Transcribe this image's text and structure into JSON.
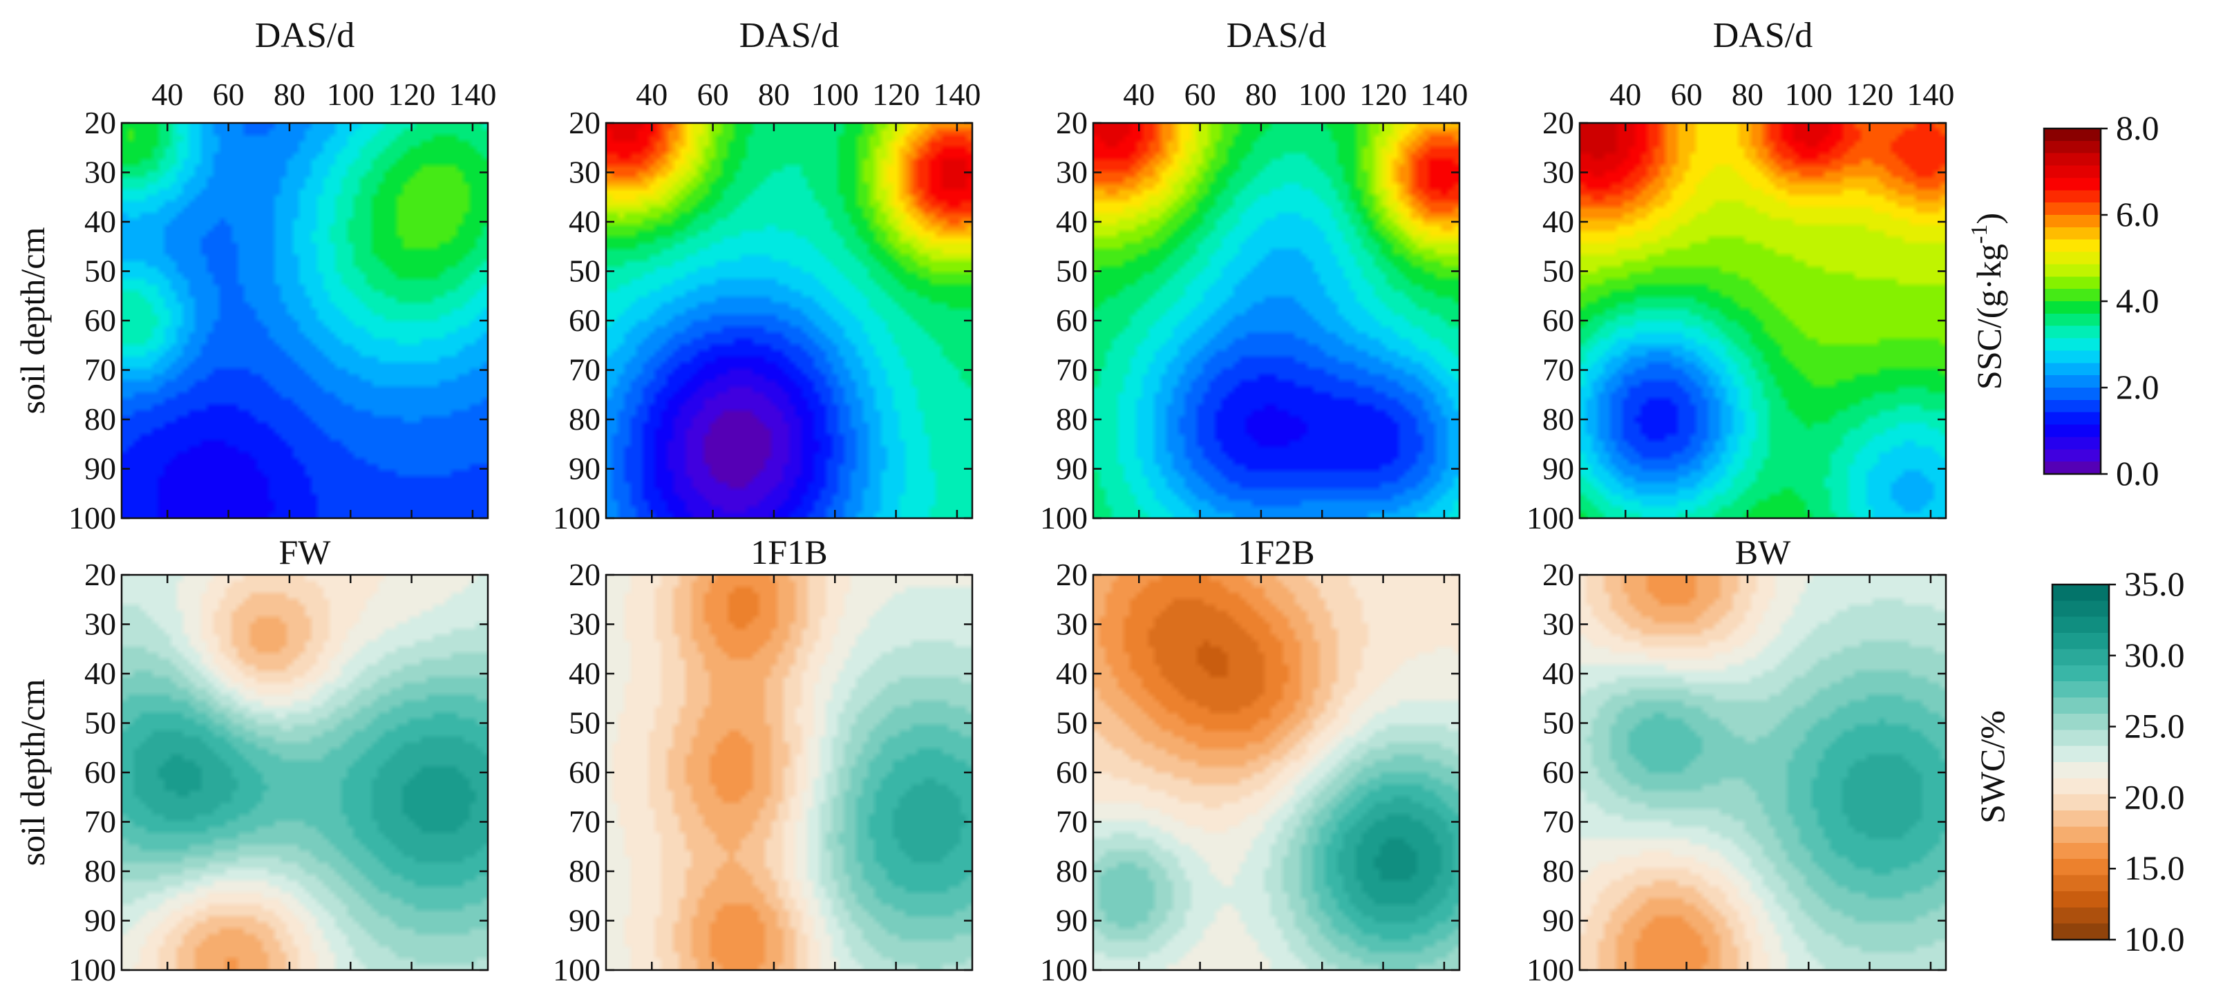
{
  "chart_data": {
    "type": "heatmap",
    "x_axis": {
      "label": "DAS/d",
      "ticks": [
        40,
        60,
        80,
        100,
        120,
        140
      ],
      "range": [
        25,
        145
      ]
    },
    "y_axis": {
      "label": "soil depth/cm",
      "ticks": [
        20,
        30,
        40,
        50,
        60,
        70,
        80,
        90,
        100
      ],
      "range": [
        20,
        100
      ]
    },
    "treatments": [
      "FW",
      "1F1B",
      "1F2B",
      "BW"
    ],
    "ssc": {
      "colorbar_label": "SSC/(g·kg",
      "colorbar_exponent": "-1",
      "colorbar_close": ")",
      "colorbar_ticks": [
        "8.0",
        "6.0",
        "4.0",
        "2.0",
        "0.0"
      ],
      "range": [
        0,
        8
      ],
      "panels": [
        {
          "treatment": "FW",
          "base": 1.6,
          "anchors": [
            {
              "das": 27,
              "depth": 22,
              "value": 4.0,
              "spread": 0.14
            },
            {
              "das": 27,
              "depth": 60,
              "value": 3.4,
              "spread": 0.12
            },
            {
              "das": 118,
              "depth": 45,
              "value": 3.5,
              "spread": 0.25
            },
            {
              "das": 55,
              "depth": 97,
              "value": 0.9,
              "spread": 0.18
            },
            {
              "das": 140,
              "depth": 25,
              "value": 2.9,
              "spread": 0.22
            }
          ]
        },
        {
          "treatment": "1F1B",
          "base": 3.4,
          "anchors": [
            {
              "das": 30,
              "depth": 20,
              "value": 7.0,
              "spread": 0.16
            },
            {
              "das": 140,
              "depth": 30,
              "value": 7.0,
              "spread": 0.15
            },
            {
              "das": 72,
              "depth": 80,
              "value": 1.3,
              "spread": 0.24
            },
            {
              "das": 60,
              "depth": 98,
              "value": 1.8,
              "spread": 0.28
            },
            {
              "das": 125,
              "depth": 70,
              "value": 3.6,
              "spread": 0.2
            }
          ]
        },
        {
          "treatment": "1F2B",
          "base": 3.8,
          "anchors": [
            {
              "das": 30,
              "depth": 20,
              "value": 7.0,
              "spread": 0.17
            },
            {
              "das": 140,
              "depth": 30,
              "value": 6.8,
              "spread": 0.13
            },
            {
              "das": 75,
              "depth": 82,
              "value": 1.3,
              "spread": 0.22
            },
            {
              "das": 125,
              "depth": 85,
              "value": 1.8,
              "spread": 0.18
            },
            {
              "das": 90,
              "depth": 45,
              "value": 2.8,
              "spread": 0.18
            }
          ]
        },
        {
          "treatment": "BW",
          "base": 4.6,
          "anchors": [
            {
              "das": 30,
              "depth": 22,
              "value": 7.3,
              "spread": 0.17
            },
            {
              "das": 100,
              "depth": 20,
              "value": 7.0,
              "spread": 0.12
            },
            {
              "das": 140,
              "depth": 25,
              "value": 6.5,
              "spread": 0.12
            },
            {
              "das": 50,
              "depth": 80,
              "value": 1.3,
              "spread": 0.2
            },
            {
              "das": 135,
              "depth": 95,
              "value": 2.5,
              "spread": 0.2
            }
          ]
        }
      ]
    },
    "swc": {
      "colorbar_label": "SWC/%",
      "colorbar_ticks": [
        "35.0",
        "30.0",
        "25.0",
        "20.0",
        "15.0",
        "10.0"
      ],
      "range": [
        10,
        35
      ],
      "panels": [
        {
          "treatment": "FW",
          "base": 23,
          "anchors": [
            {
              "das": 45,
              "depth": 60,
              "value": 31,
              "spread": 0.22
            },
            {
              "das": 130,
              "depth": 65,
              "value": 31,
              "spread": 0.25
            },
            {
              "das": 70,
              "depth": 35,
              "value": 16,
              "spread": 0.15
            },
            {
              "das": 60,
              "depth": 97,
              "value": 16,
              "spread": 0.17
            },
            {
              "das": 115,
              "depth": 22,
              "value": 21,
              "spread": 0.2
            }
          ]
        },
        {
          "treatment": "1F1B",
          "base": 22,
          "anchors": [
            {
              "das": 70,
              "depth": 25,
              "value": 15.5,
              "spread": 0.15
            },
            {
              "das": 70,
              "depth": 60,
              "value": 15.5,
              "spread": 0.17
            },
            {
              "das": 70,
              "depth": 95,
              "value": 15.5,
              "spread": 0.15
            },
            {
              "das": 130,
              "depth": 70,
              "value": 30,
              "spread": 0.26
            }
          ]
        },
        {
          "treatment": "1F2B",
          "base": 21,
          "anchors": [
            {
              "das": 50,
              "depth": 30,
              "value": 15,
              "spread": 0.22
            },
            {
              "das": 80,
              "depth": 45,
              "value": 16.5,
              "spread": 0.18
            },
            {
              "das": 125,
              "depth": 78,
              "value": 32,
              "spread": 0.22
            },
            {
              "das": 35,
              "depth": 85,
              "value": 27,
              "spread": 0.13
            }
          ]
        },
        {
          "treatment": "BW",
          "base": 22.5,
          "anchors": [
            {
              "das": 55,
              "depth": 22,
              "value": 16,
              "spread": 0.17
            },
            {
              "das": 50,
              "depth": 52,
              "value": 28,
              "spread": 0.15
            },
            {
              "das": 55,
              "depth": 97,
              "value": 15.5,
              "spread": 0.17
            },
            {
              "das": 125,
              "depth": 65,
              "value": 30,
              "spread": 0.26
            }
          ]
        }
      ]
    }
  }
}
